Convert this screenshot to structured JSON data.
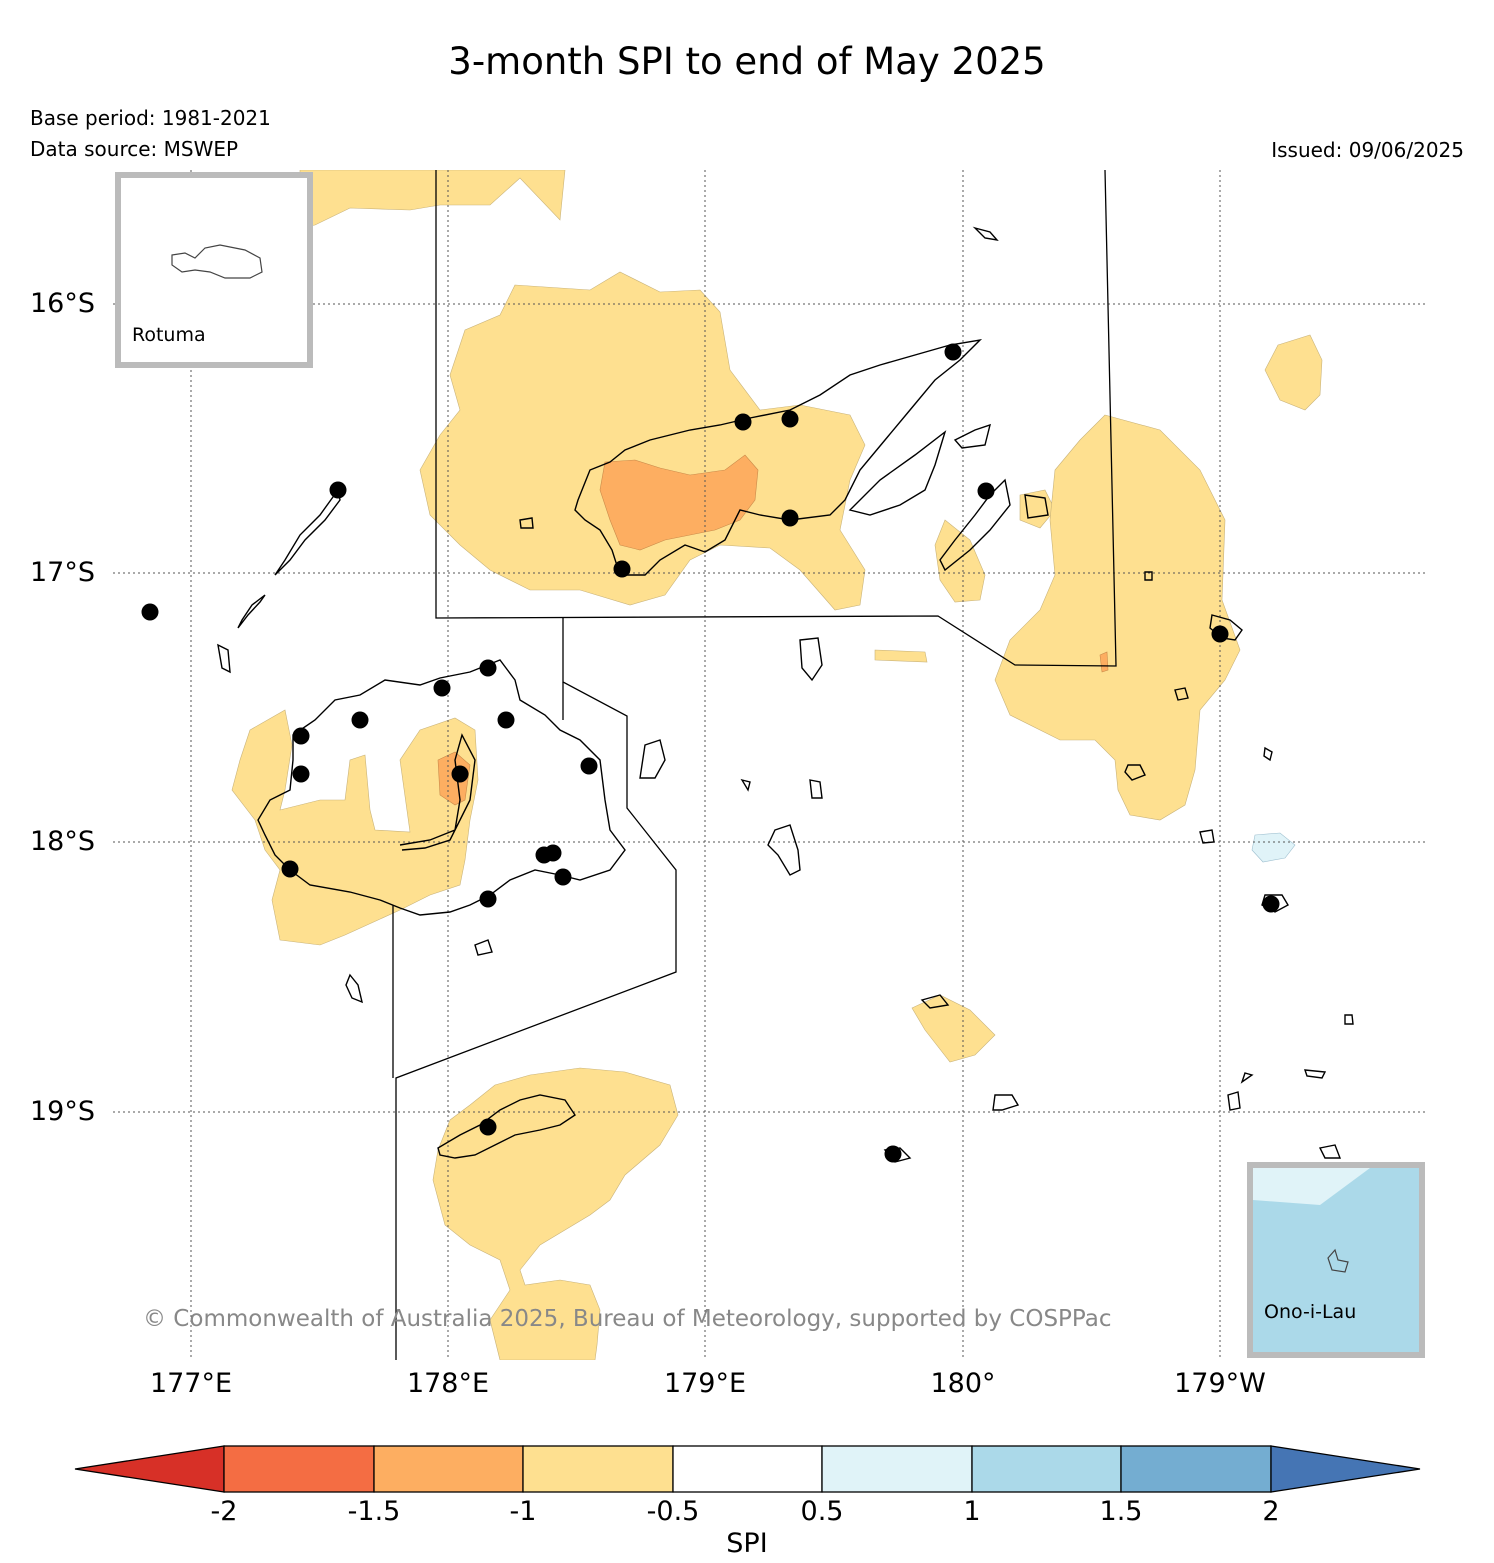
{
  "title": "3-month SPI to end of May 2025",
  "meta": {
    "base_period": "Base period: 1981-2021",
    "data_source": "Data source: MSWEP",
    "issued": "Issued: 09/06/2025"
  },
  "latitude_labels": [
    "16°S",
    "17°S",
    "18°S",
    "19°S"
  ],
  "longitude_labels": [
    "177°E",
    "178°E",
    "179°E",
    "180°",
    "179°W"
  ],
  "insets": {
    "rotuma": "Rotuma",
    "ono_i_lau": "Ono-i-Lau"
  },
  "copyright": "© Commonwealth of Australia 2025, Bureau of Meteorology, supported by COSPPac",
  "colorbar": {
    "title": "SPI",
    "ticks": [
      "-2",
      "-1.5",
      "-1",
      "-0.5",
      "0.5",
      "1",
      "1.5",
      "2"
    ],
    "colors": {
      "below_-2": "#d73027",
      "-2_to_-1.5": "#f46d43",
      "-1.5_to_-1": "#fdae61",
      "-1_to_-0.5": "#fee090",
      "-0.5_to_0.5": "#ffffff",
      "0.5_to_1": "#e0f3f8",
      "1_to_1.5": "#abd9e9",
      "1.5_to_2": "#74add1",
      "above_2": "#4575b4"
    }
  },
  "station_marker_color": "#000000"
}
